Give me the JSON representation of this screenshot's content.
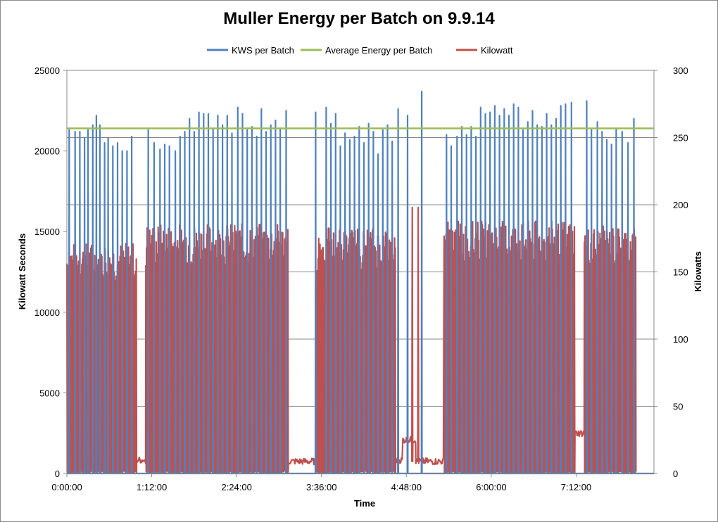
{
  "chart_data": {
    "type": "line",
    "title": "Muller Energy per Batch on 9.9.14",
    "xlabel": "Time",
    "ylabel_left": "Kilowatt Seconds",
    "ylabel_right": "Kilowatts",
    "y_left_lim": [
      0,
      25000
    ],
    "y_right_lim": [
      0,
      300
    ],
    "y_left_ticks": [
      "0",
      "5000",
      "10000",
      "15000",
      "20000",
      "25000"
    ],
    "y_right_ticks": [
      "0",
      "50",
      "100",
      "150",
      "200",
      "250",
      "300"
    ],
    "x_ticks": [
      "0:00:00",
      "1:12:00",
      "2:24:00",
      "3:36:00",
      "4:48:00",
      "6:00:00",
      "7:12:00"
    ],
    "x_range_minutes": [
      0,
      498
    ],
    "grid": "horizontal",
    "legend_position": "top",
    "series": [
      {
        "name": "KWS per Batch",
        "color": "#4f81bd",
        "axis": "left",
        "batch_peaks": [
          {
            "t": 2,
            "kws": 21300
          },
          {
            "t": 7,
            "kws": 21200
          },
          {
            "t": 11,
            "kws": 21200
          },
          {
            "t": 15,
            "kws": 20800
          },
          {
            "t": 18,
            "kws": 21300
          },
          {
            "t": 22,
            "kws": 21600
          },
          {
            "t": 25,
            "kws": 22200
          },
          {
            "t": 28,
            "kws": 21600
          },
          {
            "t": 32,
            "kws": 20500
          },
          {
            "t": 35,
            "kws": 20800
          },
          {
            "t": 39,
            "kws": 20300
          },
          {
            "t": 43,
            "kws": 20500
          },
          {
            "t": 47,
            "kws": 20000
          },
          {
            "t": 51,
            "kws": 20000
          },
          {
            "t": 55,
            "kws": 20900
          },
          {
            "t": 69,
            "kws": 21300
          },
          {
            "t": 74,
            "kws": 20500
          },
          {
            "t": 79,
            "kws": 20100
          },
          {
            "t": 83,
            "kws": 20400
          },
          {
            "t": 87,
            "kws": 20300
          },
          {
            "t": 92,
            "kws": 20000
          },
          {
            "t": 96,
            "kws": 20900
          },
          {
            "t": 100,
            "kws": 21200
          },
          {
            "t": 104,
            "kws": 22000
          },
          {
            "t": 108,
            "kws": 21200
          },
          {
            "t": 112,
            "kws": 22400
          },
          {
            "t": 116,
            "kws": 22300
          },
          {
            "t": 120,
            "kws": 22300
          },
          {
            "t": 124,
            "kws": 21400
          },
          {
            "t": 128,
            "kws": 22200
          },
          {
            "t": 132,
            "kws": 21600
          },
          {
            "t": 136,
            "kws": 22200
          },
          {
            "t": 140,
            "kws": 21100
          },
          {
            "t": 145,
            "kws": 22700
          },
          {
            "t": 149,
            "kws": 22300
          },
          {
            "t": 153,
            "kws": 21300
          },
          {
            "t": 157,
            "kws": 21500
          },
          {
            "t": 161,
            "kws": 20900
          },
          {
            "t": 165,
            "kws": 22600
          },
          {
            "t": 169,
            "kws": 21200
          },
          {
            "t": 173,
            "kws": 21600
          },
          {
            "t": 177,
            "kws": 21900
          },
          {
            "t": 181,
            "kws": 21400
          },
          {
            "t": 186,
            "kws": 22500
          },
          {
            "t": 211,
            "kws": 22400
          },
          {
            "t": 220,
            "kws": 22700
          },
          {
            "t": 224,
            "kws": 21700
          },
          {
            "t": 228,
            "kws": 22300
          },
          {
            "t": 232,
            "kws": 20300
          },
          {
            "t": 236,
            "kws": 21100
          },
          {
            "t": 240,
            "kws": 20700
          },
          {
            "t": 244,
            "kws": 20900
          },
          {
            "t": 248,
            "kws": 21500
          },
          {
            "t": 252,
            "kws": 20500
          },
          {
            "t": 256,
            "kws": 21700
          },
          {
            "t": 260,
            "kws": 21200
          },
          {
            "t": 264,
            "kws": 19800
          },
          {
            "t": 268,
            "kws": 21300
          },
          {
            "t": 272,
            "kws": 21600
          },
          {
            "t": 276,
            "kws": 20600
          },
          {
            "t": 281,
            "kws": 22600
          },
          {
            "t": 289,
            "kws": 22200
          },
          {
            "t": 301,
            "kws": 23700
          },
          {
            "t": 322,
            "kws": 21000
          },
          {
            "t": 326,
            "kws": 20300
          },
          {
            "t": 331,
            "kws": 20900
          },
          {
            "t": 335,
            "kws": 21500
          },
          {
            "t": 339,
            "kws": 21000
          },
          {
            "t": 343,
            "kws": 21500
          },
          {
            "t": 347,
            "kws": 20900
          },
          {
            "t": 351,
            "kws": 22700
          },
          {
            "t": 355,
            "kws": 22300
          },
          {
            "t": 359,
            "kws": 22400
          },
          {
            "t": 363,
            "kws": 22800
          },
          {
            "t": 367,
            "kws": 22200
          },
          {
            "t": 371,
            "kws": 22600
          },
          {
            "t": 375,
            "kws": 22200
          },
          {
            "t": 379,
            "kws": 22900
          },
          {
            "t": 383,
            "kws": 22700
          },
          {
            "t": 387,
            "kws": 21300
          },
          {
            "t": 391,
            "kws": 21800
          },
          {
            "t": 395,
            "kws": 22500
          },
          {
            "t": 399,
            "kws": 21600
          },
          {
            "t": 403,
            "kws": 21500
          },
          {
            "t": 407,
            "kws": 22300
          },
          {
            "t": 411,
            "kws": 21600
          },
          {
            "t": 415,
            "kws": 22000
          },
          {
            "t": 419,
            "kws": 22800
          },
          {
            "t": 423,
            "kws": 22900
          },
          {
            "t": 428,
            "kws": 23000
          },
          {
            "t": 441,
            "kws": 23100
          },
          {
            "t": 445,
            "kws": 21300
          },
          {
            "t": 450,
            "kws": 21800
          },
          {
            "t": 454,
            "kws": 21200
          },
          {
            "t": 458,
            "kws": 20700
          },
          {
            "t": 462,
            "kws": 20400
          },
          {
            "t": 466,
            "kws": 21400
          },
          {
            "t": 471,
            "kws": 21200
          },
          {
            "t": 476,
            "kws": 20500
          },
          {
            "t": 481,
            "kws": 22000
          }
        ]
      },
      {
        "name": "Average Energy per Batch",
        "color": "#9bbb59",
        "axis": "left",
        "value": 21400
      },
      {
        "name": "Kilowatt",
        "color": "#c0504d",
        "axis": "right",
        "active_segments": [
          {
            "start": 0,
            "end": 59,
            "peak_kw": 172,
            "low_kw": 0
          },
          {
            "start": 67,
            "end": 188,
            "peak_kw": 186,
            "low_kw": 0
          },
          {
            "start": 212,
            "end": 279,
            "peak_kw": 183,
            "low_kw": 0
          },
          {
            "start": 320,
            "end": 431,
            "peak_kw": 188,
            "low_kw": 0
          },
          {
            "start": 439,
            "end": 483,
            "peak_kw": 184,
            "low_kw": 0
          }
        ],
        "idle_segments": [
          {
            "start": 59,
            "end": 67,
            "kw": 10
          },
          {
            "start": 188,
            "end": 212,
            "kw": 9
          },
          {
            "start": 279,
            "end": 285,
            "kw": 10
          },
          {
            "start": 285,
            "end": 296,
            "kw": 25
          },
          {
            "start": 296,
            "end": 320,
            "kw": 9
          },
          {
            "start": 431,
            "end": 439,
            "kw": 30
          }
        ],
        "spikes": [
          {
            "t": 293,
            "kw": 198
          },
          {
            "t": 298,
            "kw": 198
          }
        ]
      }
    ]
  }
}
